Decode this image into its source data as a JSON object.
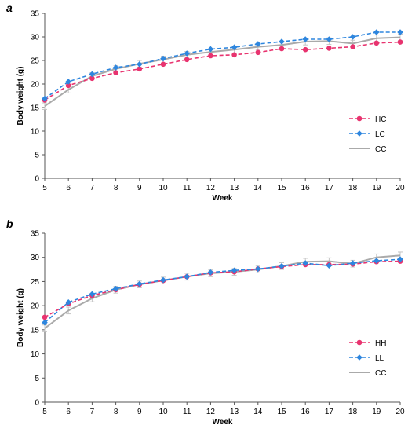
{
  "chart_data": [
    {
      "type": "line",
      "panel_label": "a",
      "xlabel": "Week",
      "ylabel": "Body weight (g)",
      "x": [
        5,
        6,
        7,
        8,
        9,
        10,
        11,
        12,
        13,
        14,
        15,
        16,
        17,
        18,
        19,
        20
      ],
      "ylim": [
        0,
        35
      ],
      "yticks": [
        0,
        5,
        10,
        15,
        20,
        25,
        30,
        35
      ],
      "grid": false,
      "legend_position": "right",
      "series": [
        {
          "name": "HC",
          "color": "#e8336f",
          "dash": true,
          "marker": "circle",
          "values": [
            16.6,
            19.7,
            21.2,
            22.4,
            23.2,
            24.2,
            25.2,
            26.0,
            26.2,
            26.7,
            27.5,
            27.3,
            27.6,
            27.9,
            28.7,
            28.9
          ]
        },
        {
          "name": "LC",
          "color": "#2e86de",
          "dash": true,
          "marker": "diamond",
          "values": [
            16.9,
            20.5,
            22.1,
            23.5,
            24.2,
            25.4,
            26.5,
            27.4,
            27.8,
            28.5,
            29.0,
            29.5,
            29.5,
            30.0,
            31.0,
            31.0
          ]
        },
        {
          "name": "CC",
          "color": "#aaaaaa",
          "dash": false,
          "marker": "none",
          "values": [
            15.3,
            18.8,
            21.7,
            23.2,
            24.3,
            25.2,
            26.2,
            26.8,
            27.3,
            27.9,
            28.3,
            29.0,
            29.1,
            28.6,
            29.7,
            29.9
          ]
        }
      ]
    },
    {
      "type": "line",
      "panel_label": "b",
      "xlabel": "Week",
      "ylabel": "Body weight (g)",
      "x": [
        5,
        6,
        7,
        8,
        9,
        10,
        11,
        12,
        13,
        14,
        15,
        16,
        17,
        18,
        19,
        20
      ],
      "ylim": [
        0,
        35
      ],
      "yticks": [
        0,
        5,
        10,
        15,
        20,
        25,
        30,
        35
      ],
      "grid": false,
      "legend_position": "right",
      "series": [
        {
          "name": "HH",
          "color": "#e8336f",
          "dash": true,
          "marker": "circle",
          "values": [
            17.6,
            20.4,
            22.1,
            23.3,
            24.4,
            25.2,
            26.0,
            26.8,
            27.0,
            27.6,
            28.1,
            28.5,
            28.5,
            28.6,
            29.1,
            29.2
          ]
        },
        {
          "name": "LL",
          "color": "#2e86de",
          "dash": true,
          "marker": "diamond",
          "values": [
            16.5,
            20.7,
            22.4,
            23.5,
            24.5,
            25.3,
            26.0,
            26.9,
            27.3,
            27.6,
            28.2,
            28.8,
            28.3,
            28.8,
            29.3,
            29.6
          ]
        },
        {
          "name": "CC",
          "color": "#aaaaaa",
          "dash": false,
          "marker": "none",
          "values": [
            15.3,
            19.0,
            21.5,
            23.3,
            24.4,
            25.2,
            26.0,
            26.7,
            27.0,
            27.5,
            28.2,
            29.1,
            29.2,
            28.7,
            30.0,
            30.4
          ]
        }
      ]
    }
  ]
}
